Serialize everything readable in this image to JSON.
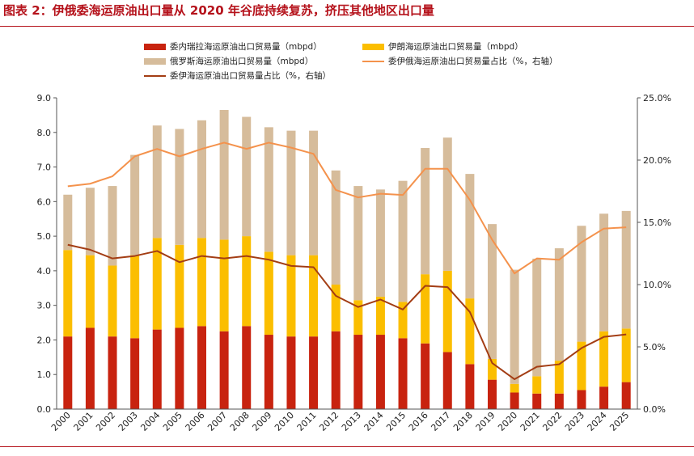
{
  "figure_title": "图表 2：伊俄委海运原油出口量从 2020 年谷底持续复苏，挤压其他地区出口量",
  "colors": {
    "venezuela": "#c8230f",
    "iran": "#fbbe00",
    "russia": "#d6bc9b",
    "share_total": "#f4924c",
    "share_ir": "#a33d14",
    "rule": "#b5121b"
  },
  "chart_data": {
    "type": "bar",
    "stacked": true,
    "categories": [
      "2000",
      "2001",
      "2002",
      "2003",
      "2004",
      "2005",
      "2006",
      "2007",
      "2008",
      "2009",
      "2010",
      "2011",
      "2012",
      "2013",
      "2014",
      "2015",
      "2016",
      "2017",
      "2018",
      "2019",
      "2020",
      "2021",
      "2022",
      "2023",
      "2024",
      "2025"
    ],
    "series": [
      {
        "name": "委内瑞拉海运原油出口贸易量（mbpd）",
        "kind": "bar",
        "axis": "left",
        "values": [
          2.1,
          2.35,
          2.1,
          2.05,
          2.3,
          2.35,
          2.4,
          2.25,
          2.4,
          2.15,
          2.1,
          2.1,
          2.25,
          2.15,
          2.15,
          2.05,
          1.9,
          1.65,
          1.3,
          0.85,
          0.48,
          0.45,
          0.45,
          0.55,
          0.65,
          0.78
        ]
      },
      {
        "name": "伊朗海运原油出口贸易量（mbpd）",
        "kind": "bar",
        "axis": "left",
        "values": [
          2.5,
          2.1,
          2.05,
          2.4,
          2.65,
          2.4,
          2.55,
          2.65,
          2.6,
          2.4,
          2.35,
          2.35,
          1.35,
          1.0,
          1.1,
          1.05,
          2.0,
          2.35,
          1.9,
          0.6,
          0.25,
          0.5,
          0.95,
          1.4,
          1.6,
          1.55
        ]
      },
      {
        "name": "俄罗斯海运原油出口贸易量（mbpd）",
        "kind": "bar",
        "axis": "left",
        "values": [
          1.6,
          1.95,
          2.3,
          2.9,
          3.25,
          3.35,
          3.4,
          3.75,
          3.45,
          3.6,
          3.6,
          3.6,
          3.3,
          3.3,
          3.1,
          3.5,
          3.65,
          3.85,
          3.6,
          3.9,
          3.3,
          3.4,
          3.25,
          3.35,
          3.4,
          3.4
        ]
      },
      {
        "name": "委伊俄海运原油出口贸易量占比（%，右轴）",
        "kind": "line",
        "axis": "right",
        "values": [
          17.9,
          18.1,
          18.7,
          20.3,
          20.9,
          20.3,
          20.9,
          21.4,
          20.9,
          21.4,
          21.0,
          20.5,
          17.6,
          17.0,
          17.3,
          17.2,
          19.3,
          19.3,
          16.8,
          13.6,
          10.9,
          12.1,
          12.0,
          13.4,
          14.5,
          14.6
        ]
      },
      {
        "name": "委伊海运原油出口贸易量占比（%，右轴）",
        "kind": "line",
        "axis": "right",
        "values": [
          13.2,
          12.8,
          12.1,
          12.3,
          12.7,
          11.8,
          12.3,
          12.1,
          12.3,
          12.0,
          11.5,
          11.4,
          9.1,
          8.2,
          8.8,
          8.0,
          9.9,
          9.8,
          7.8,
          3.7,
          2.4,
          3.4,
          3.6,
          4.9,
          5.8,
          6.0
        ]
      }
    ],
    "y_left": {
      "min": 0,
      "max": 9,
      "step": 1,
      "tick_labels": [
        "0.0",
        "1.0",
        "2.0",
        "3.0",
        "4.0",
        "5.0",
        "6.0",
        "7.0",
        "8.0",
        "9.0"
      ]
    },
    "y_right": {
      "min": 0,
      "max": 25,
      "step": 5,
      "tick_labels": [
        "0.0%",
        "5.0%",
        "10.0%",
        "15.0%",
        "20.0%",
        "25.0%"
      ]
    },
    "grid": false,
    "legend_position": "top"
  }
}
